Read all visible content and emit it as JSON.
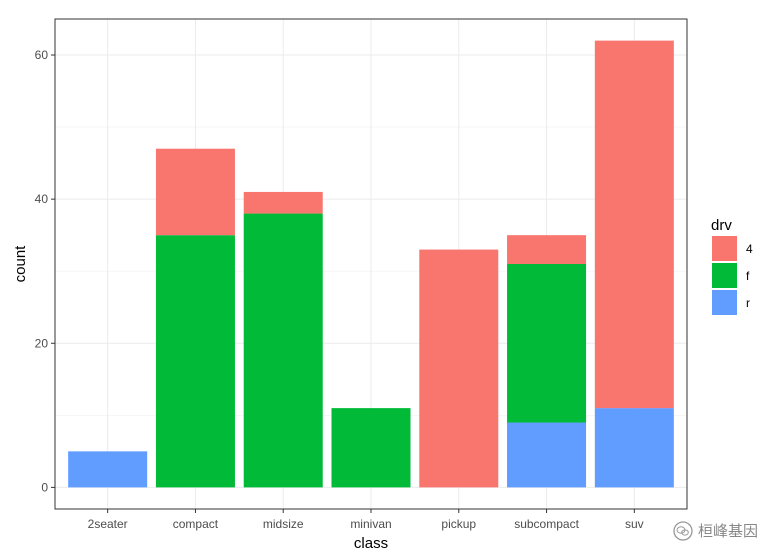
{
  "chart_data": {
    "type": "bar",
    "stacked": true,
    "categories": [
      "2seater",
      "compact",
      "midsize",
      "minivan",
      "pickup",
      "subcompact",
      "suv"
    ],
    "series": [
      {
        "name": "4",
        "color": "#F8766D",
        "values": [
          0,
          12,
          3,
          0,
          33,
          4,
          51
        ]
      },
      {
        "name": "f",
        "color": "#00BA38",
        "values": [
          0,
          35,
          38,
          11,
          0,
          22,
          0
        ]
      },
      {
        "name": "r",
        "color": "#619CFF",
        "values": [
          5,
          0,
          0,
          0,
          0,
          9,
          11
        ]
      }
    ],
    "stack_order_bottom_to_top": [
      "r",
      "f",
      "4"
    ],
    "xlabel": "class",
    "ylabel": "count",
    "ylim": [
      -3,
      65
    ],
    "yticks": [
      0,
      20,
      40,
      60
    ],
    "grid": true,
    "legend": {
      "title": "drv",
      "position": "right"
    }
  },
  "watermark": {
    "text": "桓峰基因",
    "icon": "wechat-icon"
  }
}
